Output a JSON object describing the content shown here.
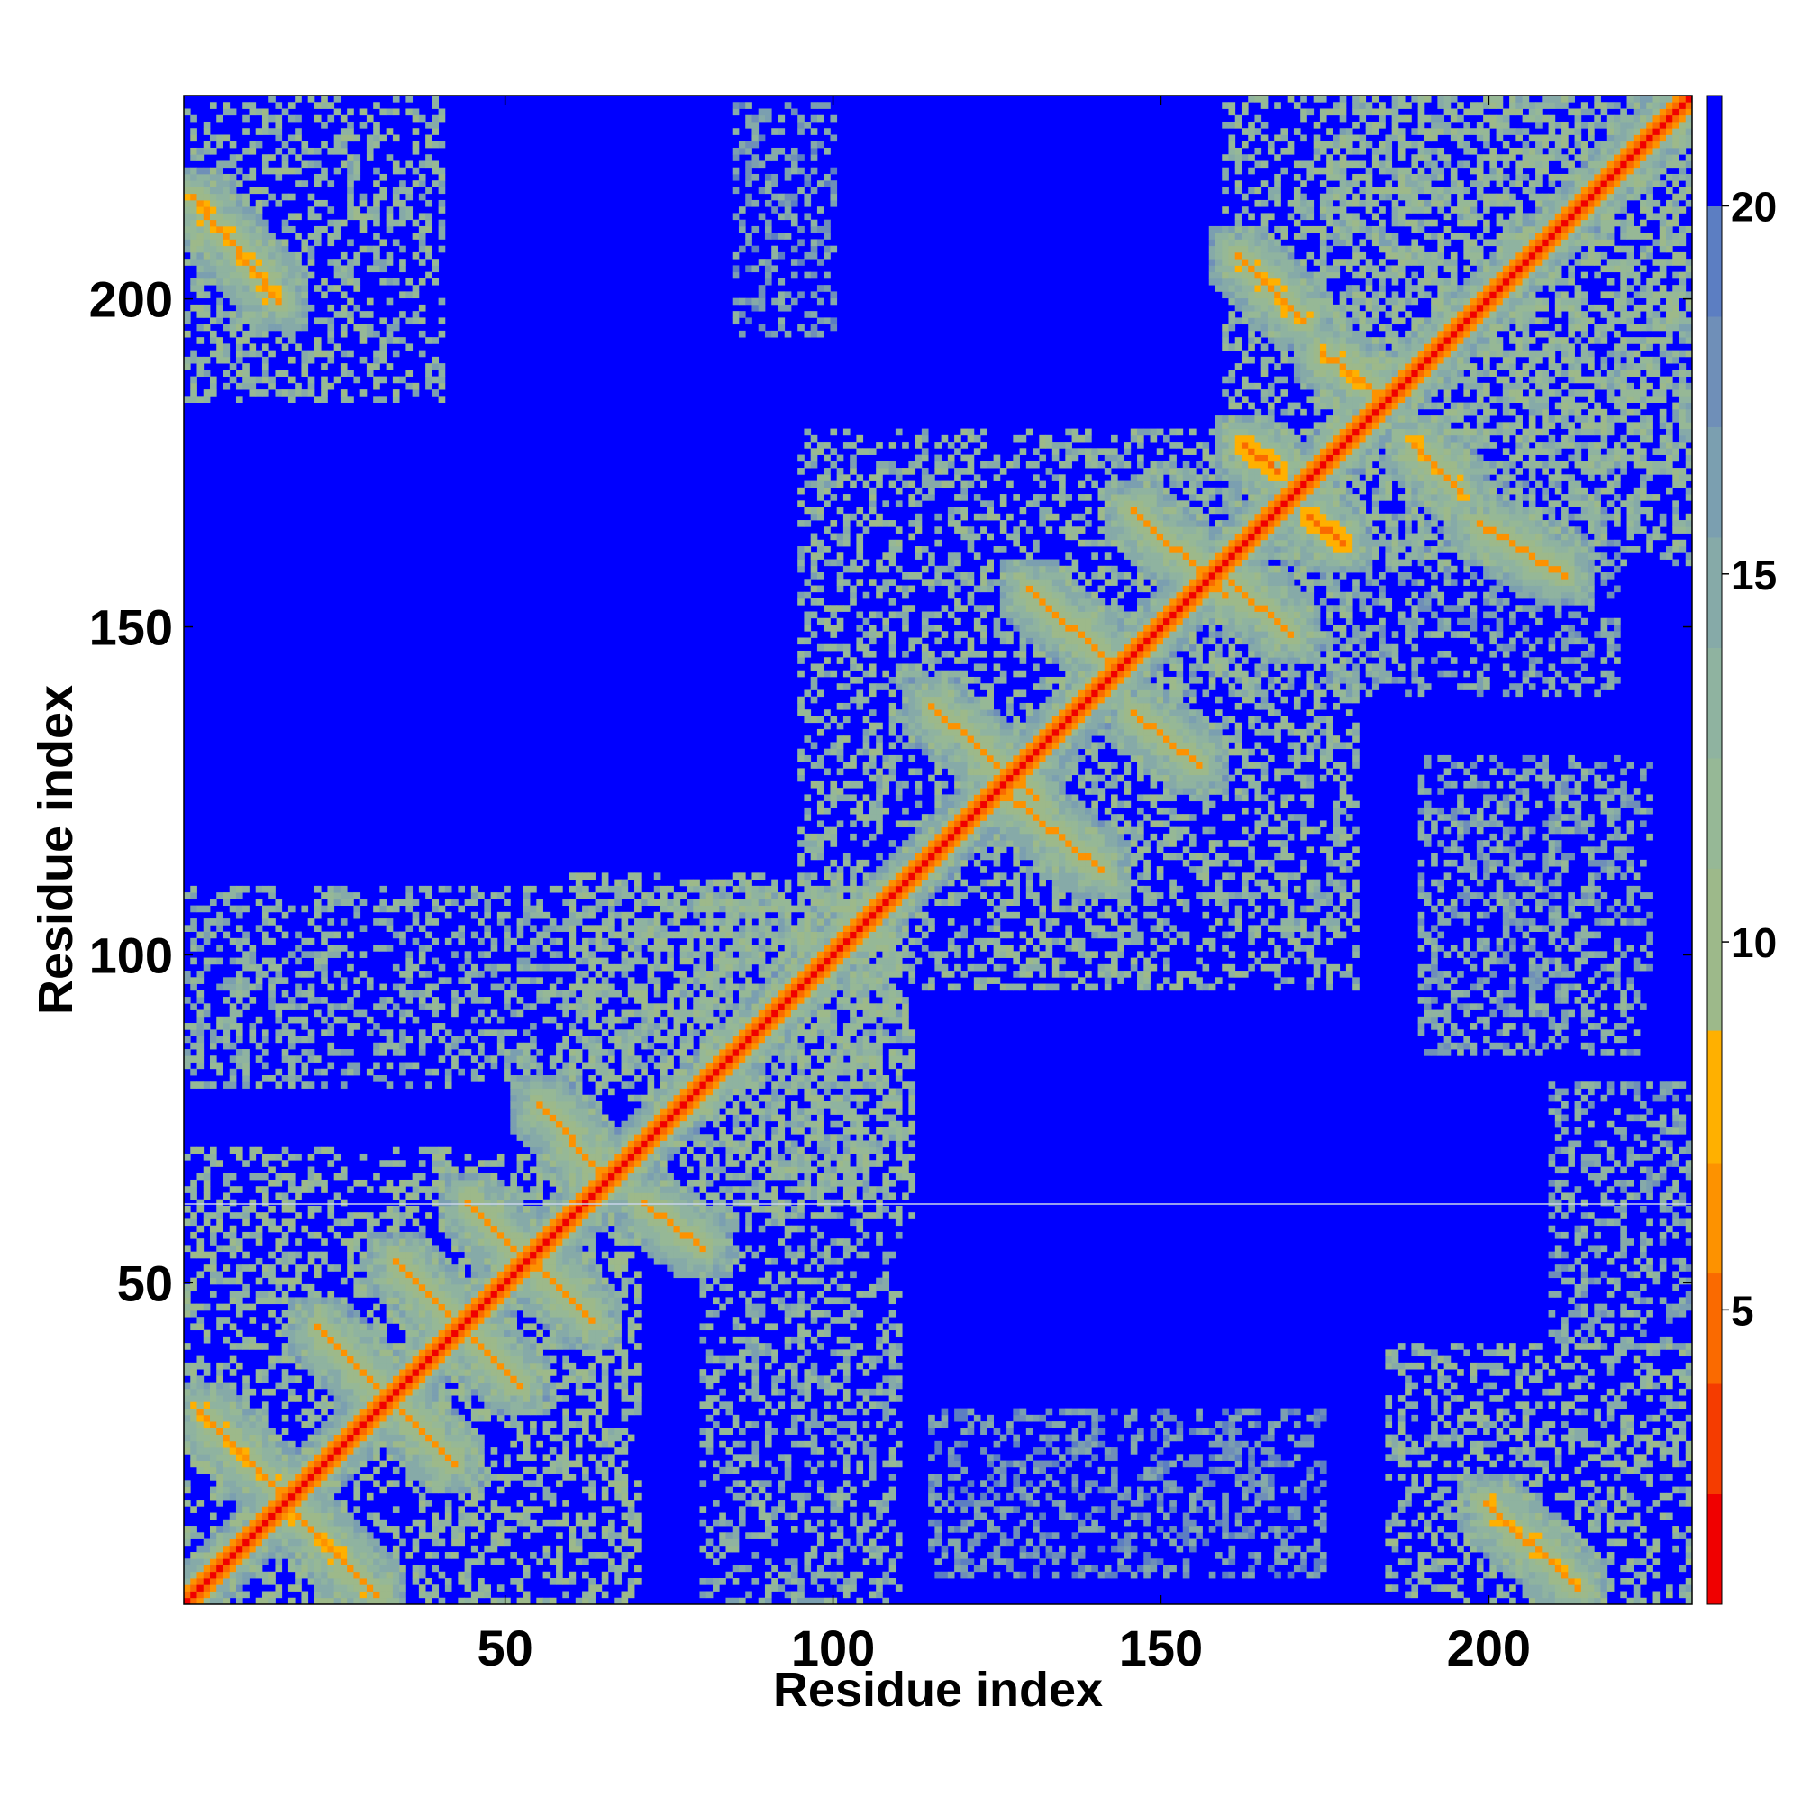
{
  "chart_data": {
    "type": "heatmap",
    "title": "",
    "xlabel": "Residue index",
    "ylabel": "Residue index",
    "xlim": [
      1,
      231
    ],
    "ylim": [
      1,
      231
    ],
    "x_ticks": [
      50,
      100,
      150,
      200
    ],
    "y_ticks": [
      50,
      100,
      150,
      200
    ],
    "colorbar": {
      "ticks": [
        5,
        10,
        15,
        20
      ],
      "range": [
        1,
        21.5
      ],
      "colors": [
        "#f00000",
        "#f53c00",
        "#fa6a00",
        "#fd9200",
        "#ffb000",
        "#9db98a",
        "#96b896",
        "#8fb3a0",
        "#86aaa8",
        "#7b9fb0",
        "#6f8fb8",
        "#5c7ec2",
        "#0000ff"
      ],
      "boundaries": [
        1,
        2.5,
        4,
        5.5,
        7,
        8.8,
        11,
        12.5,
        14,
        15.5,
        17,
        18.5,
        20,
        21.5
      ]
    },
    "value_meaning": "pairwise residue distance; diagonal ~1, unrelated pairs saturate at top color",
    "diagonal": {
      "from": 1,
      "to": 231,
      "value": 1
    },
    "beta_contacts": [
      {
        "i1": 3,
        "j1": 30,
        "i2": 17,
        "j2": 16,
        "value": 5.5
      },
      {
        "i1": 16,
        "j1": 16,
        "i2": 30,
        "j2": 2,
        "value": 5.5
      },
      {
        "i1": 21,
        "j1": 43,
        "i2": 42,
        "j2": 22,
        "value": 6
      },
      {
        "i1": 33,
        "j1": 53,
        "i2": 52,
        "j2": 34,
        "value": 6
      },
      {
        "i1": 44,
        "j1": 62,
        "i2": 63,
        "j2": 44,
        "value": 6
      },
      {
        "i1": 55,
        "j1": 77,
        "i2": 64,
        "j2": 67,
        "value": 6.5
      },
      {
        "i1": 71,
        "j1": 62,
        "i2": 80,
        "j2": 55,
        "value": 6.5
      },
      {
        "i1": 2,
        "j1": 216,
        "i2": 15,
        "j2": 200,
        "value": 5.5
      },
      {
        "i1": 200,
        "j1": 16,
        "i2": 214,
        "j2": 3,
        "value": 5.5
      },
      {
        "i1": 115,
        "j1": 138,
        "i2": 131,
        "j2": 124,
        "value": 6
      },
      {
        "i1": 126,
        "j1": 125,
        "i2": 141,
        "j2": 113,
        "value": 6
      },
      {
        "i1": 130,
        "j1": 156,
        "i2": 143,
        "j2": 144,
        "value": 6
      },
      {
        "i1": 146,
        "j1": 137,
        "i2": 156,
        "j2": 129,
        "value": 6
      },
      {
        "i1": 146,
        "j1": 168,
        "i2": 160,
        "j2": 155,
        "value": 6
      },
      {
        "i1": 161,
        "j1": 157,
        "i2": 170,
        "j2": 149,
        "value": 6
      },
      {
        "i1": 162,
        "j1": 207,
        "i2": 172,
        "j2": 197,
        "value": 5.5
      },
      {
        "i1": 175,
        "j1": 192,
        "i2": 183,
        "j2": 186,
        "value": 5.5
      },
      {
        "i1": 189,
        "j1": 178,
        "i2": 196,
        "j2": 171,
        "value": 5.5
      },
      {
        "i1": 199,
        "j1": 166,
        "i2": 212,
        "j2": 158,
        "value": 6
      },
      {
        "i1": 163,
        "j1": 178,
        "i2": 168,
        "j2": 174,
        "value": 4
      },
      {
        "i1": 173,
        "j1": 167,
        "i2": 178,
        "j2": 163,
        "value": 4
      }
    ],
    "contact_regions": [
      {
        "x": [
          1,
          70
        ],
        "y": [
          1,
          70
        ],
        "value": 12
      },
      {
        "x": [
          60,
          112
        ],
        "y": [
          60,
          112
        ],
        "value": 12
      },
      {
        "x": [
          95,
          180
        ],
        "y": [
          95,
          180
        ],
        "value": 13
      },
      {
        "x": [
          1,
          40
        ],
        "y": [
          185,
          231
        ],
        "value": 13
      },
      {
        "x": [
          185,
          231
        ],
        "y": [
          1,
          40
        ],
        "value": 13
      },
      {
        "x": [
          175,
          231
        ],
        "y": [
          160,
          231
        ],
        "value": 13
      },
      {
        "x": [
          160,
          231
        ],
        "y": [
          175,
          231
        ],
        "value": 13
      },
      {
        "x": [
          1,
          110
        ],
        "y": [
          80,
          110
        ],
        "value": 14
      },
      {
        "x": [
          80,
          110
        ],
        "y": [
          1,
          110
        ],
        "value": 14
      },
      {
        "x": [
          190,
          225
        ],
        "y": [
          85,
          130
        ],
        "value": 15
      },
      {
        "x": [
          85,
          100
        ],
        "y": [
          195,
          230
        ],
        "value": 16
      },
      {
        "x": [
          115,
          175
        ],
        "y": [
          5,
          30
        ],
        "value": 17
      },
      {
        "x": [
          150,
          220
        ],
        "y": [
          140,
          175
        ],
        "value": 15
      },
      {
        "x": [
          210,
          231
        ],
        "y": [
          40,
          80
        ],
        "value": 15
      }
    ],
    "gap_row": 62
  }
}
